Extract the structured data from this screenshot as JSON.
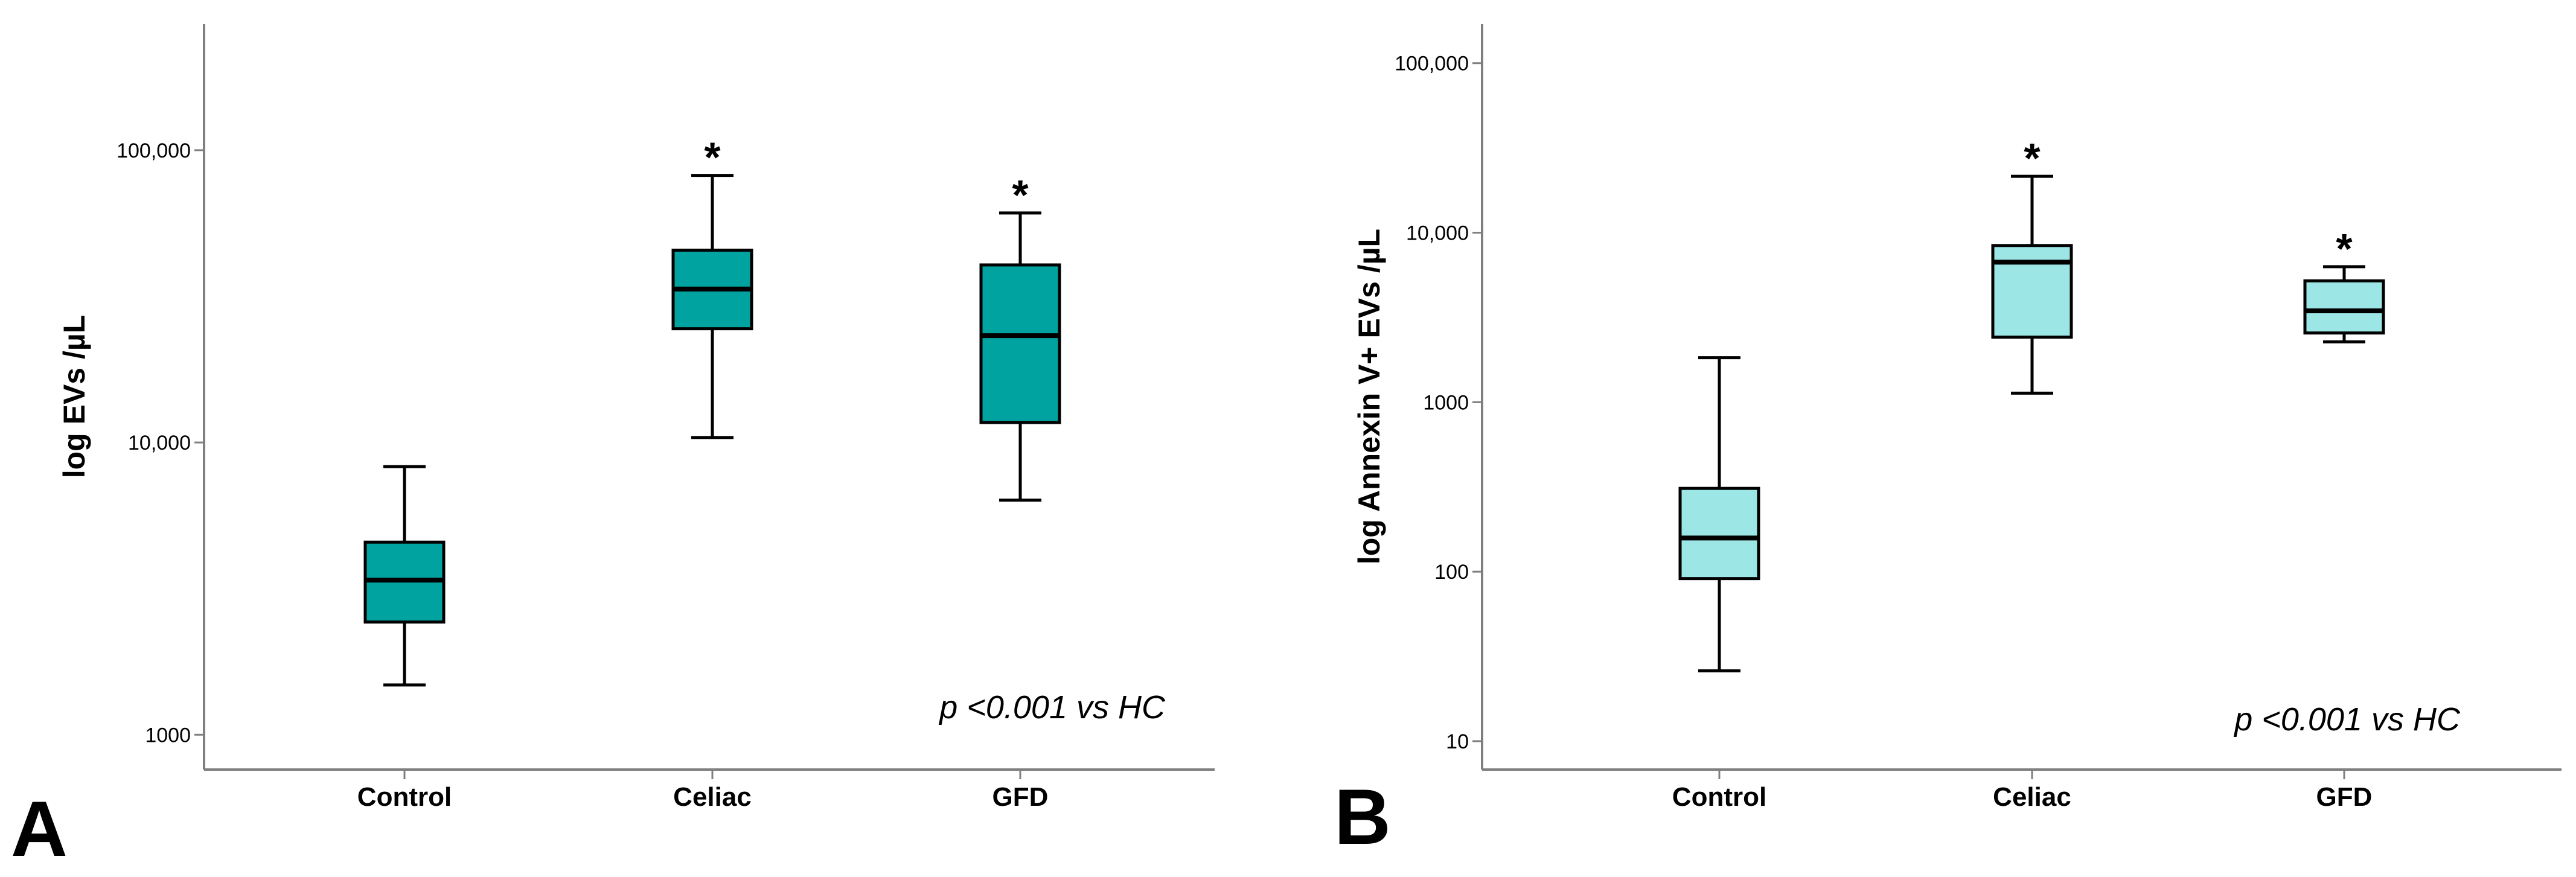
{
  "chart_data": [
    {
      "panel": "A",
      "type": "box",
      "title": "",
      "xlabel": "",
      "ylabel": "log EVs /µL",
      "yscale": "log",
      "ylim": [
        760,
        270000
      ],
      "yticks": [
        {
          "value": 1000,
          "label": "1000"
        },
        {
          "value": 10000,
          "label": "10,000"
        },
        {
          "value": 100000,
          "label": "100,000"
        }
      ],
      "categories": [
        "Control",
        "Celiac",
        "GFD"
      ],
      "box_color": "#00a3a0",
      "boxes": [
        {
          "category": "Control",
          "min": 1480,
          "q1": 2430,
          "median": 3380,
          "q3": 4560,
          "max": 8270,
          "significant": false
        },
        {
          "category": "Celiac",
          "min": 10400,
          "q1": 24500,
          "median": 33500,
          "q3": 45500,
          "max": 82000,
          "significant": true
        },
        {
          "category": "GFD",
          "min": 6350,
          "q1": 11700,
          "median": 23200,
          "q3": 40500,
          "max": 61000,
          "significant": true
        }
      ],
      "significance_marker": "*",
      "annotation": "p <0.001 vs HC"
    },
    {
      "panel": "B",
      "type": "box",
      "title": "",
      "xlabel": "",
      "ylabel": "log Annexin V+ EVs /µL",
      "yscale": "log",
      "ylim": [
        6.8,
        170000
      ],
      "yticks": [
        {
          "value": 10,
          "label": "10"
        },
        {
          "value": 100,
          "label": "100"
        },
        {
          "value": 1000,
          "label": "1000"
        },
        {
          "value": 10000,
          "label": "10,000"
        },
        {
          "value": 100000,
          "label": "100,000"
        }
      ],
      "categories": [
        "Control",
        "Celiac",
        "GFD"
      ],
      "box_color": "#9de6e6",
      "boxes": [
        {
          "category": "Control",
          "min": 26,
          "q1": 91,
          "median": 158,
          "q3": 310,
          "max": 1830,
          "significant": false
        },
        {
          "category": "Celiac",
          "min": 1130,
          "q1": 2420,
          "median": 6700,
          "q3": 8400,
          "max": 21500,
          "significant": true
        },
        {
          "category": "GFD",
          "min": 2270,
          "q1": 2560,
          "median": 3460,
          "q3": 5200,
          "max": 6300,
          "significant": true
        }
      ],
      "significance_marker": "*",
      "annotation": "p <0.001 vs HC"
    }
  ]
}
